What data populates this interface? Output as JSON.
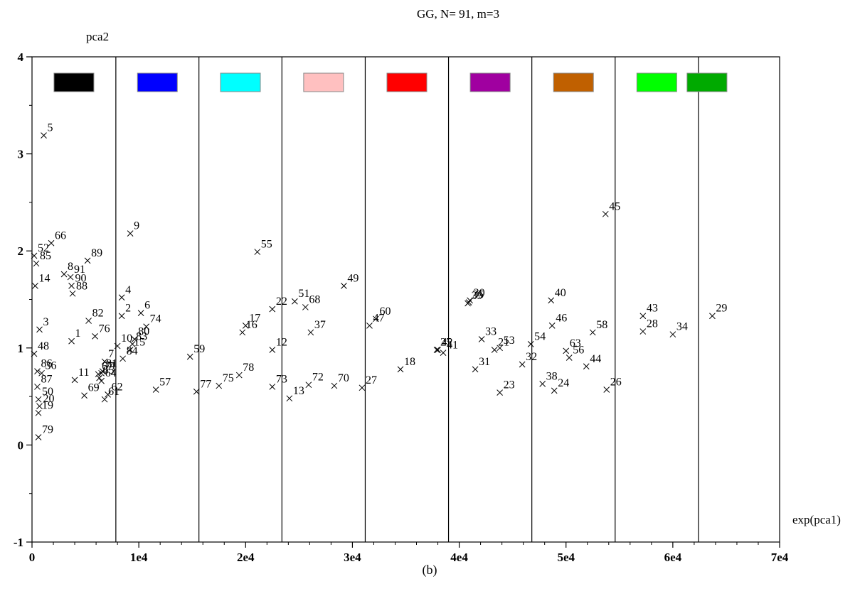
{
  "chart_data": {
    "type": "scatter",
    "title": "GG,  N= 91,  m=3",
    "xlabel": "exp(pca1)",
    "ylabel": "pca2",
    "caption": "(b)",
    "xlim": [
      0,
      70000
    ],
    "ylim": [
      -1,
      4
    ],
    "x_ticks": [
      0,
      10000,
      20000,
      30000,
      40000,
      50000,
      60000,
      70000
    ],
    "x_tick_labels": [
      "0",
      "1e4",
      "2e4",
      "3e4",
      "4e4",
      "5e4",
      "6e4",
      "7e4"
    ],
    "y_ticks": [
      -1,
      0,
      1,
      2,
      3,
      4
    ],
    "y_tick_labels": [
      "-1",
      "0",
      "1",
      "2",
      "3",
      "4"
    ],
    "grid": false,
    "marker": "x",
    "dividers": [
      7850,
      15630,
      23400,
      31200,
      39000,
      46800,
      54600,
      62400
    ],
    "class_swatches": [
      "#000000",
      "#0000ff",
      "#00ffff",
      "#ffc0c0",
      "#ff0000",
      "#a000a0",
      "#c06000",
      "#00ff00",
      "#00aa00"
    ],
    "points": [
      {
        "id": "1",
        "x": 3700,
        "y": 1.07
      },
      {
        "id": "2",
        "x": 8400,
        "y": 1.33
      },
      {
        "id": "3",
        "x": 700,
        "y": 1.19
      },
      {
        "id": "4",
        "x": 8400,
        "y": 1.52
      },
      {
        "id": "5",
        "x": 1100,
        "y": 3.19
      },
      {
        "id": "6",
        "x": 10200,
        "y": 1.36
      },
      {
        "id": "7",
        "x": 6800,
        "y": 0.86
      },
      {
        "id": "8",
        "x": 3000,
        "y": 1.76
      },
      {
        "id": "9",
        "x": 9200,
        "y": 2.18
      },
      {
        "id": "10",
        "x": 8000,
        "y": 1.02
      },
      {
        "id": "11",
        "x": 4000,
        "y": 0.67
      },
      {
        "id": "12",
        "x": 22500,
        "y": 0.98
      },
      {
        "id": "13",
        "x": 24100,
        "y": 0.48
      },
      {
        "id": "14",
        "x": 300,
        "y": 1.64
      },
      {
        "id": "15",
        "x": 9200,
        "y": 0.98
      },
      {
        "id": "16",
        "x": 19700,
        "y": 1.16
      },
      {
        "id": "17",
        "x": 20000,
        "y": 1.23
      },
      {
        "id": "18",
        "x": 34500,
        "y": 0.78
      },
      {
        "id": "19",
        "x": 600,
        "y": 0.33
      },
      {
        "id": "20",
        "x": 700,
        "y": 0.4
      },
      {
        "id": "21",
        "x": 43300,
        "y": 0.98
      },
      {
        "id": "22",
        "x": 22500,
        "y": 1.4
      },
      {
        "id": "23",
        "x": 43800,
        "y": 0.54
      },
      {
        "id": "24",
        "x": 48900,
        "y": 0.56
      },
      {
        "id": "25",
        "x": 37900,
        "y": 0.98
      },
      {
        "id": "26",
        "x": 53800,
        "y": 0.57
      },
      {
        "id": "27",
        "x": 30900,
        "y": 0.59
      },
      {
        "id": "28",
        "x": 57200,
        "y": 1.17
      },
      {
        "id": "29",
        "x": 63700,
        "y": 1.33
      },
      {
        "id": "30",
        "x": 41000,
        "y": 1.49
      },
      {
        "id": "31",
        "x": 41500,
        "y": 0.78
      },
      {
        "id": "32",
        "x": 45900,
        "y": 0.83
      },
      {
        "id": "33",
        "x": 42100,
        "y": 1.09
      },
      {
        "id": "34",
        "x": 60000,
        "y": 1.14
      },
      {
        "id": "35",
        "x": 40900,
        "y": 1.47
      },
      {
        "id": "36",
        "x": 900,
        "y": 0.74
      },
      {
        "id": "37",
        "x": 26100,
        "y": 1.16
      },
      {
        "id": "38",
        "x": 47800,
        "y": 0.63
      },
      {
        "id": "39",
        "x": 40800,
        "y": 1.46
      },
      {
        "id": "40",
        "x": 48600,
        "y": 1.49
      },
      {
        "id": "41",
        "x": 38500,
        "y": 0.95
      },
      {
        "id": "42",
        "x": 38000,
        "y": 0.98
      },
      {
        "id": "43",
        "x": 57200,
        "y": 1.33
      },
      {
        "id": "44",
        "x": 51900,
        "y": 0.81
      },
      {
        "id": "45",
        "x": 53700,
        "y": 2.38
      },
      {
        "id": "46",
        "x": 48700,
        "y": 1.23
      },
      {
        "id": "47",
        "x": 31600,
        "y": 1.23
      },
      {
        "id": "48",
        "x": 200,
        "y": 0.94
      },
      {
        "id": "49",
        "x": 29200,
        "y": 1.64
      },
      {
        "id": "50",
        "x": 600,
        "y": 0.47
      },
      {
        "id": "51",
        "x": 24600,
        "y": 1.48
      },
      {
        "id": "52",
        "x": 200,
        "y": 1.95
      },
      {
        "id": "53",
        "x": 43800,
        "y": 1.0
      },
      {
        "id": "54",
        "x": 46700,
        "y": 1.04
      },
      {
        "id": "55",
        "x": 21100,
        "y": 1.99
      },
      {
        "id": "56",
        "x": 50300,
        "y": 0.9
      },
      {
        "id": "57",
        "x": 11600,
        "y": 0.57
      },
      {
        "id": "58",
        "x": 52500,
        "y": 1.16
      },
      {
        "id": "59",
        "x": 14800,
        "y": 0.91
      },
      {
        "id": "60",
        "x": 32200,
        "y": 1.3
      },
      {
        "id": "61",
        "x": 6800,
        "y": 0.47
      },
      {
        "id": "62",
        "x": 7100,
        "y": 0.52
      },
      {
        "id": "63",
        "x": 50000,
        "y": 0.97
      },
      {
        "id": "64",
        "x": 6500,
        "y": 0.66
      },
      {
        "id": "65",
        "x": 6300,
        "y": 0.69
      },
      {
        "id": "66",
        "x": 1800,
        "y": 2.08
      },
      {
        "id": "67",
        "x": 6200,
        "y": 0.73
      },
      {
        "id": "68",
        "x": 25600,
        "y": 1.42
      },
      {
        "id": "69",
        "x": 4900,
        "y": 0.51
      },
      {
        "id": "70",
        "x": 28300,
        "y": 0.61
      },
      {
        "id": "71",
        "x": 6500,
        "y": 0.74
      },
      {
        "id": "72",
        "x": 25900,
        "y": 0.62
      },
      {
        "id": "73",
        "x": 22500,
        "y": 0.6
      },
      {
        "id": "74",
        "x": 10700,
        "y": 1.22
      },
      {
        "id": "75",
        "x": 17500,
        "y": 0.61
      },
      {
        "id": "76",
        "x": 5900,
        "y": 1.12
      },
      {
        "id": "77",
        "x": 15400,
        "y": 0.55
      },
      {
        "id": "78",
        "x": 19400,
        "y": 0.72
      },
      {
        "id": "79",
        "x": 600,
        "y": 0.08
      },
      {
        "id": "80",
        "x": 9600,
        "y": 1.09
      },
      {
        "id": "81",
        "x": 6600,
        "y": 0.76
      },
      {
        "id": "82",
        "x": 5300,
        "y": 1.28
      },
      {
        "id": "83",
        "x": 9400,
        "y": 1.04
      },
      {
        "id": "84",
        "x": 8500,
        "y": 0.89
      },
      {
        "id": "85",
        "x": 400,
        "y": 1.87
      },
      {
        "id": "86",
        "x": 500,
        "y": 0.76
      },
      {
        "id": "87",
        "x": 500,
        "y": 0.6
      },
      {
        "id": "88",
        "x": 3800,
        "y": 1.56
      },
      {
        "id": "89",
        "x": 5200,
        "y": 1.9
      },
      {
        "id": "90",
        "x": 3700,
        "y": 1.64
      },
      {
        "id": "91",
        "x": 3600,
        "y": 1.73
      }
    ]
  }
}
